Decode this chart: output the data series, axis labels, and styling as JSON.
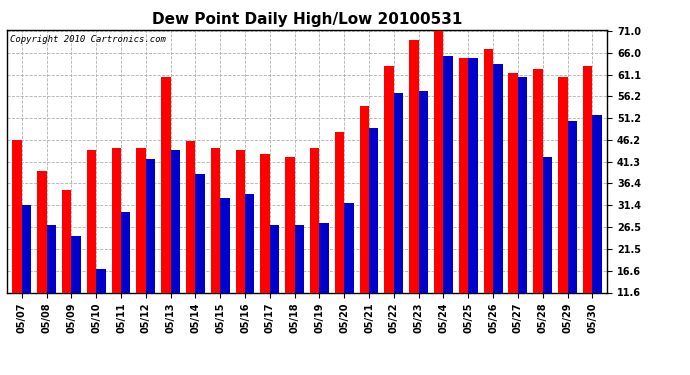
{
  "title": "Dew Point Daily High/Low 20100531",
  "copyright": "Copyright 2010 Cartronics.com",
  "dates": [
    "05/07",
    "05/08",
    "05/09",
    "05/10",
    "05/11",
    "05/12",
    "05/13",
    "05/14",
    "05/15",
    "05/16",
    "05/17",
    "05/18",
    "05/19",
    "05/20",
    "05/21",
    "05/22",
    "05/23",
    "05/24",
    "05/25",
    "05/26",
    "05/27",
    "05/28",
    "05/29",
    "05/30"
  ],
  "high_values": [
    46.2,
    39.2,
    35.0,
    44.0,
    44.5,
    44.5,
    60.5,
    46.0,
    44.5,
    44.0,
    43.0,
    42.5,
    44.5,
    48.0,
    54.0,
    63.0,
    69.0,
    71.0,
    65.0,
    67.0,
    61.5,
    62.5,
    60.5,
    63.0
  ],
  "low_values": [
    31.4,
    27.0,
    24.5,
    17.0,
    30.0,
    42.0,
    44.0,
    38.5,
    33.0,
    34.0,
    27.0,
    27.0,
    27.5,
    32.0,
    49.0,
    57.0,
    57.5,
    65.5,
    65.0,
    63.5,
    60.5,
    42.5,
    50.5,
    52.0
  ],
  "yticks": [
    11.6,
    16.6,
    21.5,
    26.5,
    31.4,
    36.4,
    41.3,
    46.2,
    51.2,
    56.2,
    61.1,
    66.0,
    71.0
  ],
  "ymin": 11.6,
  "ymax": 71.0,
  "bar_width": 0.38,
  "high_color": "#ff0000",
  "low_color": "#0000cc",
  "background_color": "#ffffff",
  "grid_color": "#b0b0b0",
  "title_fontsize": 11,
  "tick_fontsize": 7,
  "copyright_fontsize": 6.5
}
